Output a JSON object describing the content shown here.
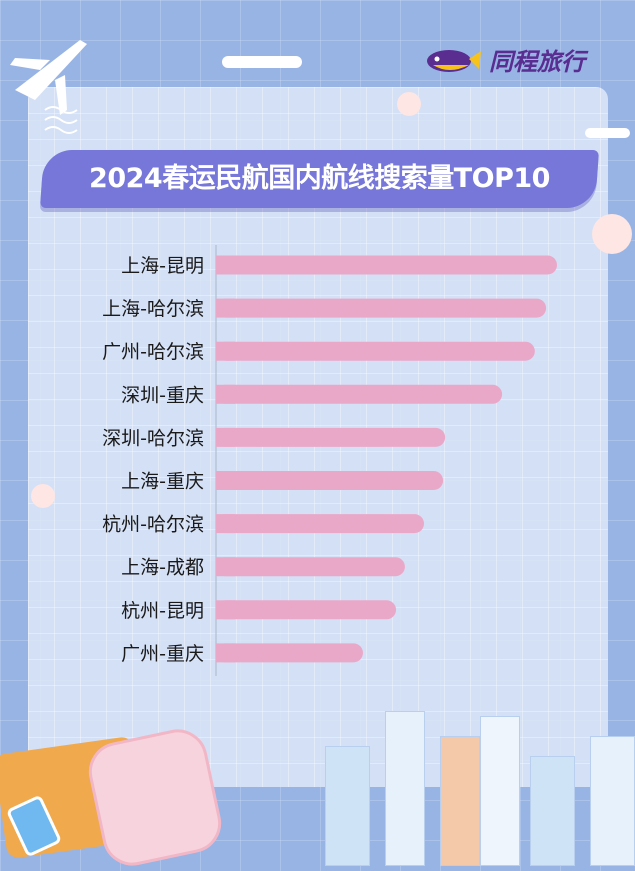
{
  "brand": {
    "name": "同程旅行",
    "logo_colors": [
      "#5a2d91",
      "#f7c21a"
    ]
  },
  "chart_data": {
    "type": "bar",
    "orientation": "horizontal",
    "title": "2024春运民航国内航线搜索量TOP10",
    "xlabel": "",
    "ylabel": "",
    "categories": [
      "上海-昆明",
      "上海-哈尔滨",
      "广州-哈尔滨",
      "深圳-重庆",
      "深圳-哈尔滨",
      "上海-重庆",
      "杭州-哈尔滨",
      "上海-成都",
      "杭州-昆明",
      "广州-重庆"
    ],
    "values": [
      100,
      96.8,
      93.5,
      83.9,
      67.2,
      66.6,
      61.0,
      55.4,
      52.8,
      43.1
    ],
    "value_note": "relative, no scale printed",
    "xlim": [
      0,
      100
    ],
    "grid": false,
    "bar_color": "#eaa8c9"
  }
}
